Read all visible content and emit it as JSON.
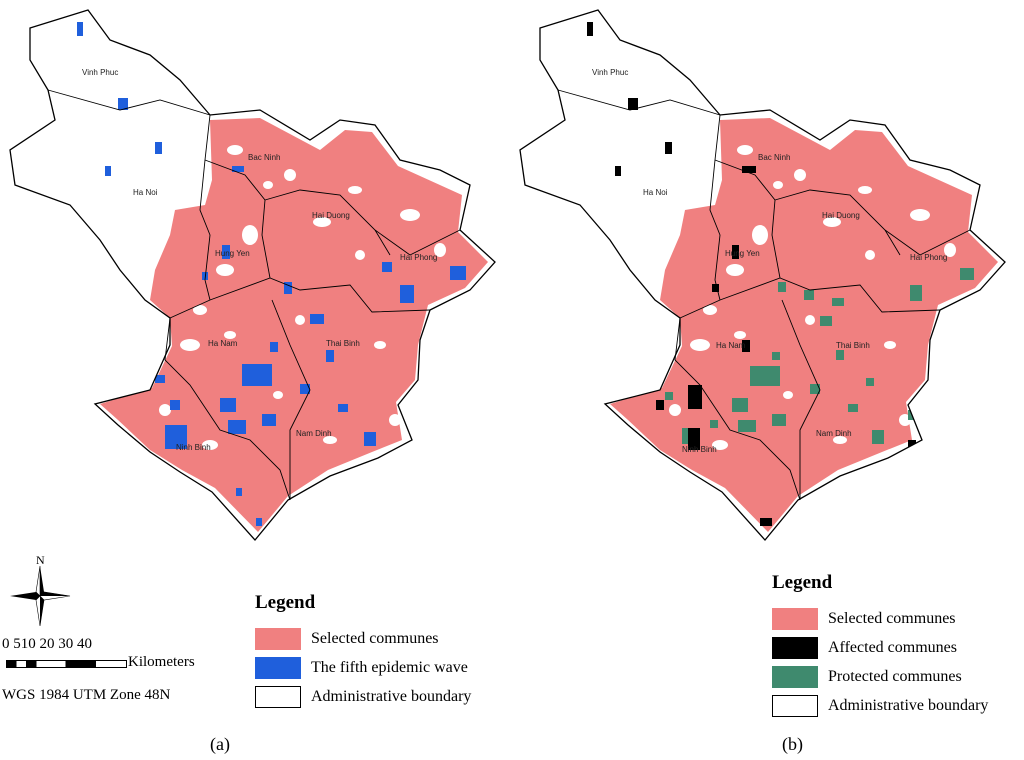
{
  "colors": {
    "selected": "#f08080",
    "fifth_wave": "#1f5fdc",
    "affected": "#000000",
    "protected": "#3f8a6e",
    "boundary": "#000000",
    "background": "#ffffff"
  },
  "provinces": {
    "vinh_phuc": "Vinh Phuc",
    "bac_ninh": "Bac Ninh",
    "ha_noi": "Ha Noi",
    "hai_duong": "Hai Duong",
    "hung_yen": "Hung Yen",
    "hai_phong": "Hai Phong",
    "ha_nam": "Ha Nam",
    "thai_binh": "Thai Binh",
    "ninh_binh": "Ninh Binh",
    "nam_dinh": "Nam Dinh"
  },
  "north_arrow": {
    "label": "N",
    "icon": "north-arrow-icon"
  },
  "scale_bar": {
    "ticks": "0 510   20    30    40",
    "unit": "Kilometers",
    "projection": "WGS 1984 UTM Zone 48N"
  },
  "panel_a": {
    "label": "(a)",
    "legend": {
      "title": "Legend",
      "items": [
        {
          "label": "Selected communes",
          "color": "#f08080"
        },
        {
          "label": "The fifth epidemic wave",
          "color": "#1f5fdc"
        },
        {
          "label": "Administrative boundary",
          "color": "#ffffff"
        }
      ]
    }
  },
  "panel_b": {
    "label": "(b)",
    "legend": {
      "title": "Legend",
      "items": [
        {
          "label": "Selected communes",
          "color": "#f08080"
        },
        {
          "label": "Affected communes",
          "color": "#000000"
        },
        {
          "label": "Protected communes",
          "color": "#3f8a6e"
        },
        {
          "label": "Administrative boundary",
          "color": "#ffffff"
        }
      ]
    }
  }
}
